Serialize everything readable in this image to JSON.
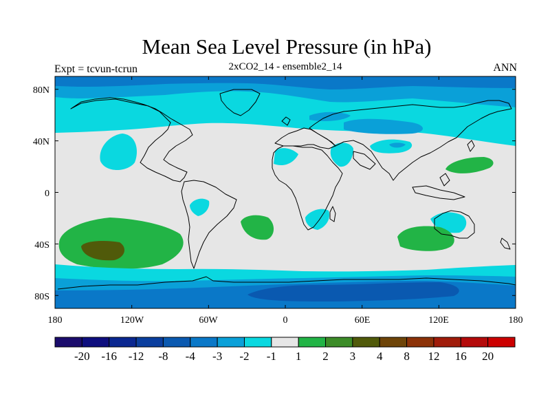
{
  "title": "Mean Sea Level Pressure (in hPa)",
  "left_label": "Expt = tcvun-tcrun",
  "center_label": "2xCO2_14 - ensemble2_14",
  "right_label": "ANN",
  "map": {
    "projection": "cylindrical equidistant",
    "lon_range": [
      -180,
      180
    ],
    "lat_range": [
      -90,
      90
    ],
    "x_ticks": [
      "180",
      "120W",
      "60W",
      "0",
      "60E",
      "120E",
      "180"
    ],
    "y_ticks": [
      "80N",
      "40N",
      "0",
      "40S",
      "80S"
    ]
  },
  "colorbar": {
    "labels": [
      "-20",
      "-16",
      "-12",
      "-8",
      "-4",
      "-3",
      "-2",
      "-1",
      "1",
      "2",
      "3",
      "4",
      "8",
      "12",
      "16",
      "20"
    ],
    "colors": [
      "#1b0c6c",
      "#0e0e7e",
      "#0a2790",
      "#0a3e9e",
      "#0a59b0",
      "#0a78c8",
      "#0aa0d8",
      "#0ad8e0",
      "#e6e6e6",
      "#22b446",
      "#3c8c28",
      "#505a0a",
      "#6e4408",
      "#8c3208",
      "#a01c0a",
      "#b40a0a",
      "#cc0000"
    ]
  },
  "palette": {
    "ocean_light": "#e6e6e6",
    "cyan": "#0ad8e0",
    "light_blue": "#0aa0d8",
    "mid_blue": "#0a78c8",
    "dark_blue": "#0a59b0",
    "green": "#22b446",
    "olive": "#505a0a",
    "coast": "#000000"
  }
}
